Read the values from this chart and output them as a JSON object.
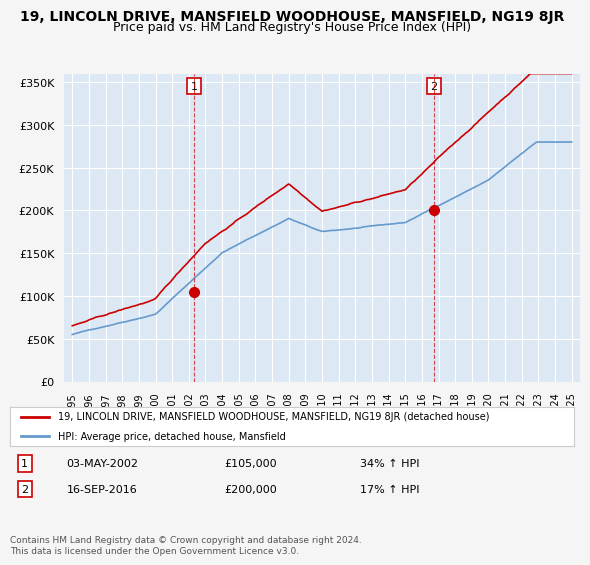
{
  "title": "19, LINCOLN DRIVE, MANSFIELD WOODHOUSE, MANSFIELD, NG19 8JR",
  "subtitle": "Price paid vs. HM Land Registry's House Price Index (HPI)",
  "ylabel": "",
  "xlabel": "",
  "ylim": [
    0,
    360000
  ],
  "yticks": [
    0,
    50000,
    100000,
    150000,
    200000,
    250000,
    300000,
    350000
  ],
  "ytick_labels": [
    "£0",
    "£50K",
    "£100K",
    "£150K",
    "£200K",
    "£250K",
    "£300K",
    "£350K"
  ],
  "x_start_year": 1995,
  "x_end_year": 2025,
  "red_line_color": "#cc0000",
  "blue_line_color": "#6699cc",
  "background_color": "#dce9f5",
  "plot_bg_color": "#dce9f5",
  "grid_color": "#ffffff",
  "sale1_date": "2002-05-03",
  "sale1_value": 105000,
  "sale1_year": 2002.33,
  "sale2_date": "2016-09-16",
  "sale2_value": 200000,
  "sale2_year": 2016.71,
  "legend_line1": "19, LINCOLN DRIVE, MANSFIELD WOODHOUSE, MANSFIELD, NG19 8JR (detached house)",
  "legend_line2": "HPI: Average price, detached house, Mansfield",
  "note1_label": "1",
  "note1_date": "03-MAY-2002",
  "note1_price": "£105,000",
  "note1_hpi": "34% ↑ HPI",
  "note2_label": "2",
  "note2_date": "16-SEP-2016",
  "note2_price": "£200,000",
  "note2_hpi": "17% ↑ HPI",
  "footer": "Contains HM Land Registry data © Crown copyright and database right 2024.\nThis data is licensed under the Open Government Licence v3.0.",
  "title_fontsize": 10,
  "subtitle_fontsize": 9
}
